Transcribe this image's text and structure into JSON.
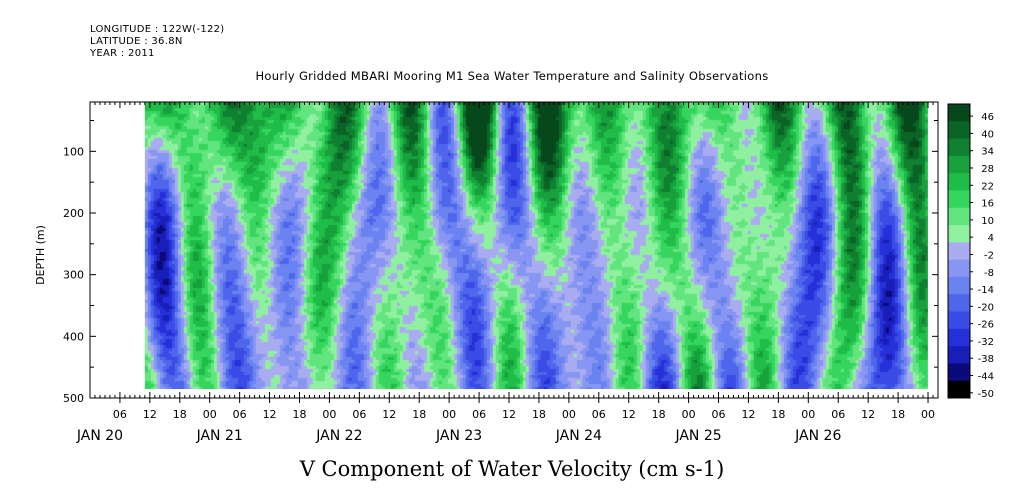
{
  "header": {
    "longitude": "LONGITUDE : 122W(-122)",
    "latitude": "LATITUDE : 36.8N",
    "year": "YEAR : 2011"
  },
  "chart_data": {
    "type": "heatmap",
    "title": "Hourly Gridded MBARI Mooring M1 Sea Water Temperature and Salinity Observations",
    "xlabel": "V Component of Water Velocity (cm s-1)",
    "ylabel": "DEPTH (m)",
    "y_axis": {
      "range": [
        20,
        500
      ],
      "inverted": true,
      "ticks": [
        100,
        200,
        300,
        400,
        500
      ],
      "units": "m"
    },
    "x_axis": {
      "units": "hours",
      "range_hours": [
        0,
        170
      ],
      "hour_ticks": [
        "06",
        "12",
        "18",
        "00",
        "06",
        "12",
        "18",
        "00",
        "06",
        "12",
        "18",
        "00",
        "06",
        "12",
        "18",
        "00",
        "06",
        "12",
        "18",
        "00",
        "06",
        "12",
        "18",
        "00",
        "06",
        "12",
        "18",
        "00"
      ],
      "day_labels": [
        "JAN 20",
        "JAN 21",
        "JAN 22",
        "JAN 23",
        "JAN 24",
        "JAN 25",
        "JAN 26"
      ]
    },
    "data_extent": {
      "hours": [
        11,
        168
      ],
      "depth_m": [
        20,
        485
      ]
    },
    "colorbar": {
      "levels": [
        -50,
        -44,
        -38,
        -32,
        -26,
        -20,
        -14,
        -8,
        -2,
        4,
        10,
        16,
        22,
        28,
        34,
        40,
        46
      ],
      "labels": [
        "46",
        "40",
        "34",
        "28",
        "22",
        "16",
        "10",
        "4",
        "-2",
        "-8",
        "-14",
        "-20",
        "-26",
        "-32",
        "-38",
        "-44",
        "-50"
      ]
    },
    "colors": {
      "negative": "#a9acf0",
      "positive": "#8ff0a0"
    },
    "pattern": "alternating vertical bands of northward (green, positive) and southward (blue/purple, negative) velocity; strongest positive values near the surface (20-120 m), strongest negative values at 300-450 m"
  }
}
